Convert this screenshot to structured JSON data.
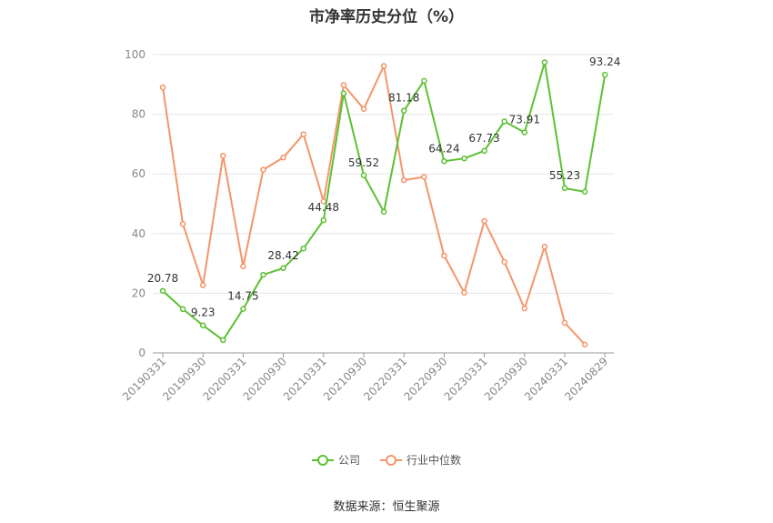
{
  "chart_data": {
    "type": "line",
    "title": "市净率历史分位（%）",
    "ylim": [
      0,
      100
    ],
    "yticks": [
      0,
      20,
      40,
      60,
      80,
      100
    ],
    "grid": true,
    "legend_position": "bottom",
    "tick_labels": [
      "20190331",
      "20190930",
      "20200331",
      "20200930",
      "20210331",
      "20210930",
      "20220331",
      "20220930",
      "20230331",
      "20230930",
      "20240331",
      "20240829"
    ],
    "x": [
      "20190331",
      "20190630",
      "20190930",
      "20191231",
      "20200331",
      "20200630",
      "20200930",
      "20201231",
      "20210331",
      "20210630",
      "20210930",
      "20211231",
      "20220331",
      "20220630",
      "20220930",
      "20221231",
      "20230331",
      "20230630",
      "20230930",
      "20231231",
      "20240331",
      "20240630",
      "20240829"
    ],
    "series": [
      {
        "name": "公司",
        "color": "#5cc132",
        "values": [
          20.78,
          14.7,
          9.23,
          4.3,
          14.75,
          26.2,
          28.42,
          35.0,
          44.48,
          87.0,
          59.52,
          47.3,
          81.18,
          91.2,
          64.24,
          65.2,
          67.73,
          77.6,
          73.91,
          97.4,
          55.23,
          54.0,
          93.24
        ],
        "labels": [
          "20.78",
          "",
          "9.23",
          "",
          "14.75",
          "",
          "28.42",
          "",
          "44.48",
          "",
          "59.52",
          "",
          "81.18",
          "",
          "64.24",
          "",
          "67.73",
          "",
          "73.91",
          "",
          "55.23",
          "",
          "93.24"
        ]
      },
      {
        "name": "行业中位数",
        "color": "#f4956b",
        "values": [
          89.0,
          43.2,
          22.7,
          66.1,
          29.0,
          61.4,
          65.5,
          73.3,
          50.8,
          89.8,
          81.8,
          96.2,
          57.9,
          59.0,
          32.6,
          20.2,
          44.2,
          30.5,
          14.9,
          35.6,
          10.1,
          2.8,
          null
        ]
      }
    ]
  },
  "source_text": "数据来源：恒生聚源"
}
